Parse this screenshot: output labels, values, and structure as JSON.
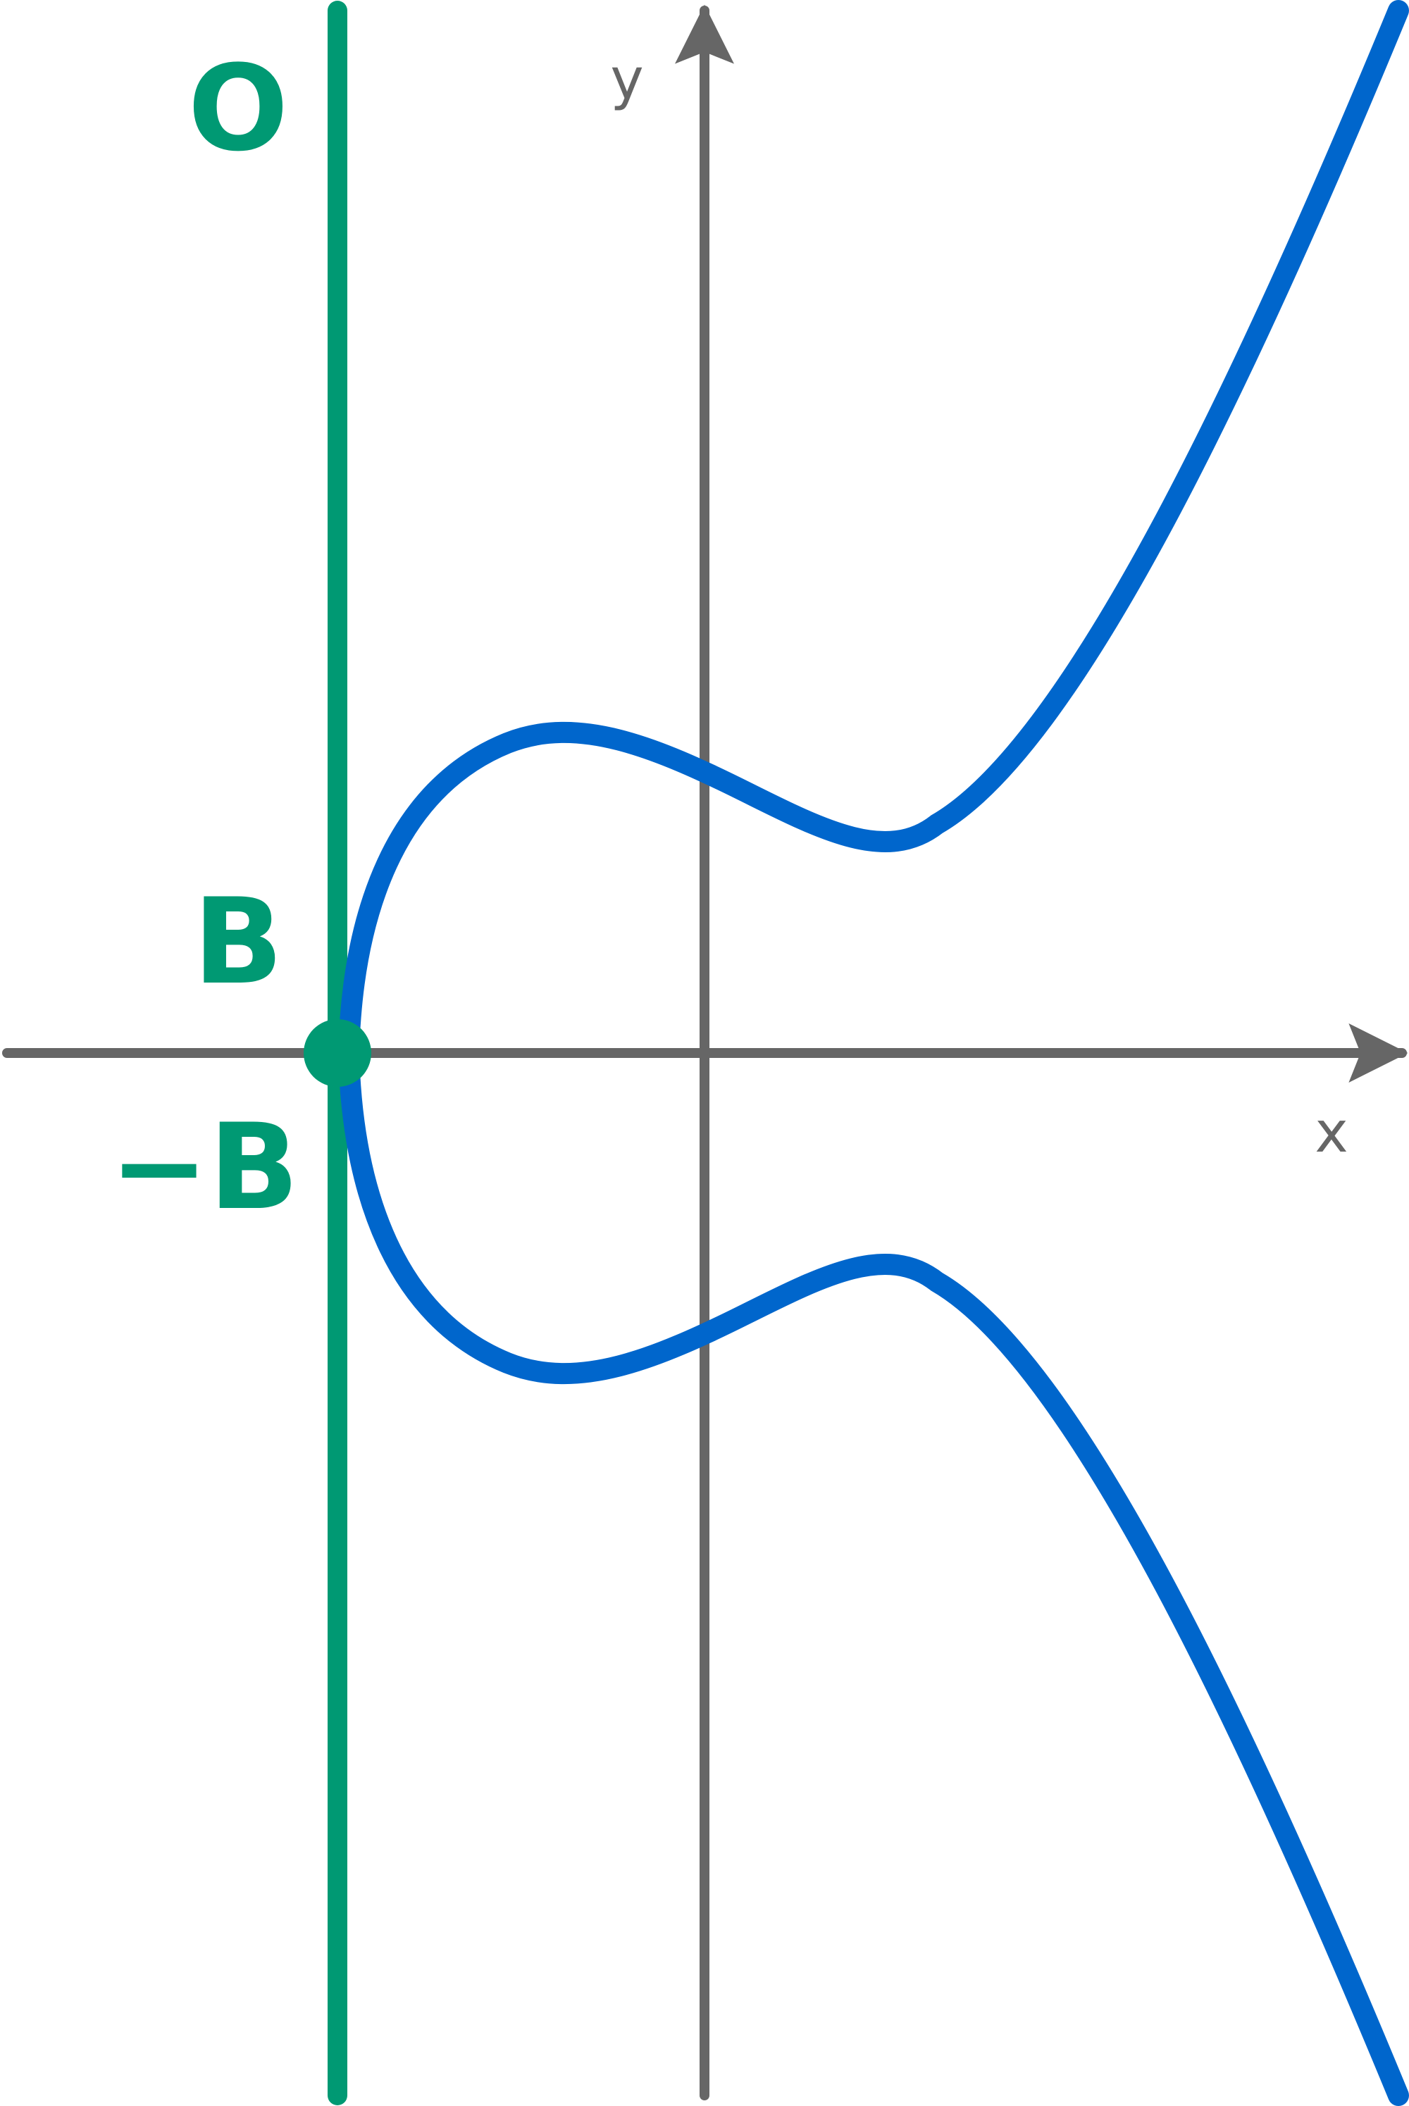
{
  "colors": {
    "curve": "#0066cc",
    "line": "#009973",
    "axis": "#666666",
    "background": "#ffffff"
  },
  "labels": {
    "x_axis": "x",
    "y_axis": "y",
    "point_O": "O",
    "point_B": "B",
    "point_neg_B": "−B"
  }
}
